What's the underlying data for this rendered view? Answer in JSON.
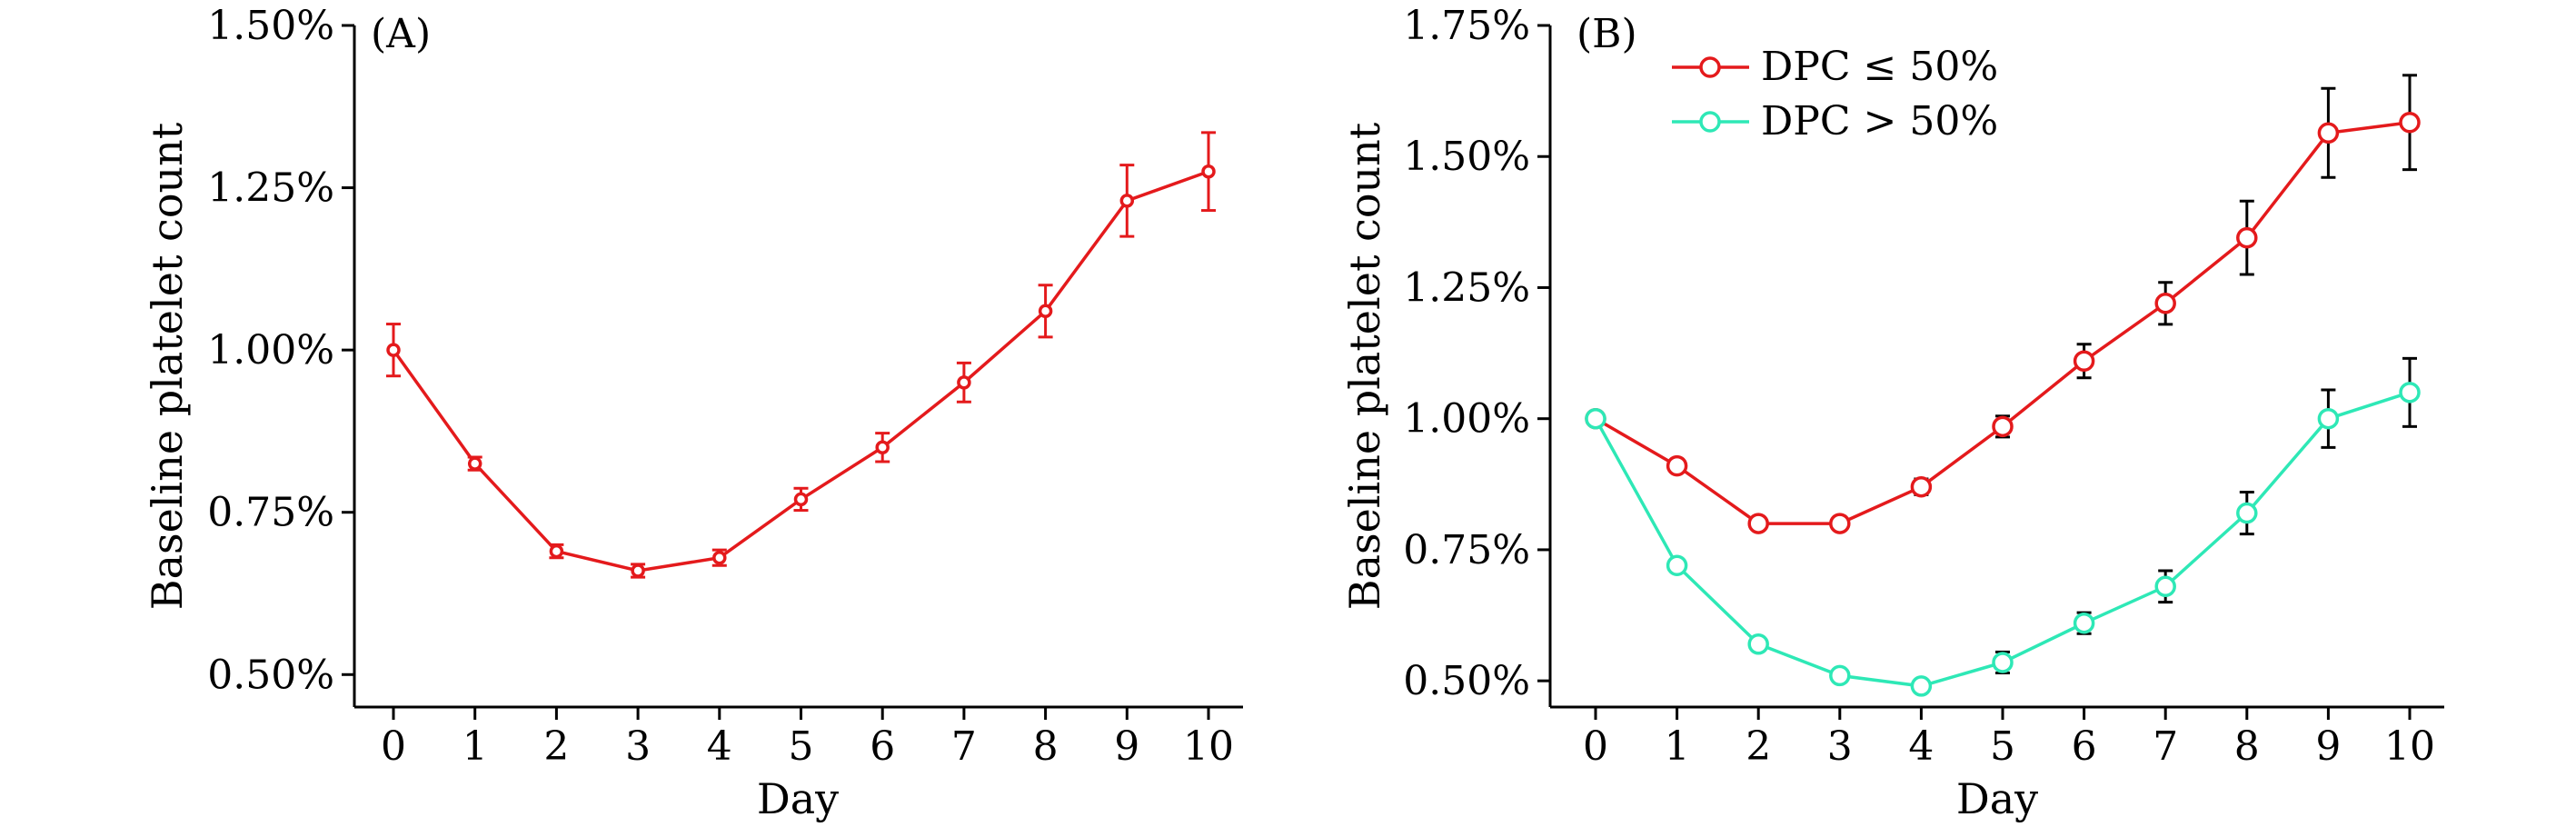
{
  "chart_data": [
    {
      "type": "line",
      "panel_label": "(A)",
      "xlabel": "Day",
      "ylabel": "Baseline platelet count",
      "x": [
        0,
        1,
        2,
        3,
        4,
        5,
        6,
        7,
        8,
        9,
        10
      ],
      "x_ticks": [
        "0",
        "1",
        "2",
        "3",
        "4",
        "5",
        "6",
        "7",
        "8",
        "9",
        "10"
      ],
      "xlim": [
        0,
        10
      ],
      "ylim": [
        0.45,
        1.5
      ],
      "y_ticks": [
        0.5,
        0.75,
        1.0,
        1.25,
        1.5
      ],
      "y_tick_labels": [
        "0.50%",
        "0.75%",
        "1.00%",
        "1.25%",
        "1.50%"
      ],
      "grid": false,
      "series": [
        {
          "name": "",
          "color": "#e41a1c",
          "error_bar_color": "#e41a1c",
          "marker": "open-circle",
          "values": [
            1.0,
            0.825,
            0.69,
            0.66,
            0.68,
            0.77,
            0.85,
            0.95,
            1.06,
            1.23,
            1.275
          ],
          "errors": [
            0.04,
            0.01,
            0.01,
            0.01,
            0.012,
            0.017,
            0.022,
            0.03,
            0.04,
            0.055,
            0.06
          ]
        }
      ]
    },
    {
      "type": "line",
      "panel_label": "(B)",
      "xlabel": "Day",
      "ylabel": "Baseline platelet count",
      "x": [
        0,
        1,
        2,
        3,
        4,
        5,
        6,
        7,
        8,
        9,
        10
      ],
      "x_ticks": [
        "0",
        "1",
        "2",
        "3",
        "4",
        "5",
        "6",
        "7",
        "8",
        "9",
        "10"
      ],
      "xlim": [
        0,
        10
      ],
      "ylim": [
        0.45,
        1.75
      ],
      "y_ticks": [
        0.5,
        0.75,
        1.0,
        1.25,
        1.5,
        1.75
      ],
      "y_tick_labels": [
        "0.50%",
        "0.75%",
        "1.00%",
        "1.25%",
        "1.50%",
        "1.75%"
      ],
      "grid": false,
      "legend": "top-left",
      "series": [
        {
          "name": "DPC ≤ 50%",
          "color": "#e41a1c",
          "error_bar_color": "#000000",
          "marker": "open-circle",
          "values": [
            1.0,
            0.91,
            0.8,
            0.8,
            0.87,
            0.985,
            1.11,
            1.22,
            1.345,
            1.545,
            1.565
          ],
          "errors": [
            0.0,
            0.0,
            0.0,
            0.0,
            0.015,
            0.02,
            0.032,
            0.04,
            0.07,
            0.085,
            0.09
          ]
        },
        {
          "name": "DPC > 50%",
          "color": "#2ee8b6",
          "error_bar_color": "#000000",
          "marker": "open-circle",
          "values": [
            1.0,
            0.72,
            0.57,
            0.51,
            0.49,
            0.535,
            0.61,
            0.68,
            0.82,
            1.0,
            1.05
          ],
          "errors": [
            0.0,
            0.0,
            0.0,
            0.0,
            0.0,
            0.02,
            0.02,
            0.03,
            0.04,
            0.055,
            0.065
          ]
        }
      ]
    }
  ]
}
